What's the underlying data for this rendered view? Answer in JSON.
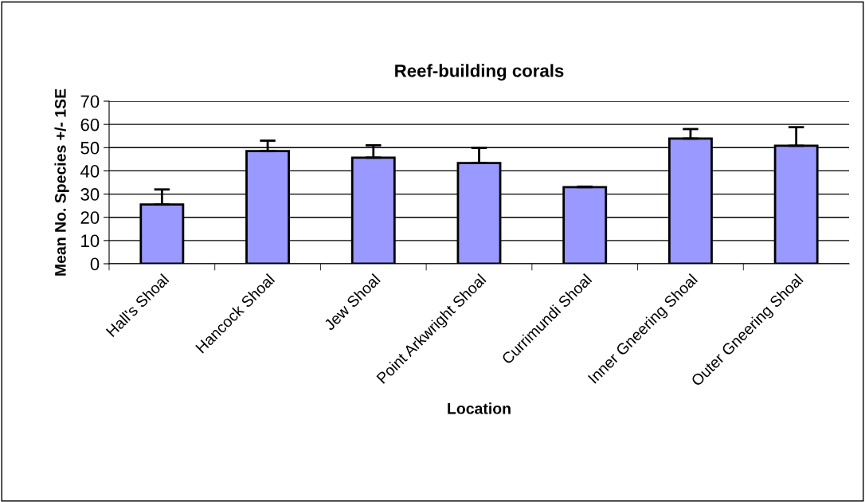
{
  "chart_data": {
    "type": "bar",
    "title": "Reef-building corals",
    "xlabel": "Location",
    "ylabel": "Mean No. Species +/- 1SE",
    "categories": [
      "Hall's Shoal",
      "Hancock Shoal",
      "Jew Shoal",
      "Point Arkwright Shoal",
      "Currimundi Shoal",
      "Inner Gneering Shoal",
      "Outer Gneering Shoal"
    ],
    "values": [
      25.5,
      48.5,
      45.7,
      43.4,
      33.0,
      53.9,
      50.8
    ],
    "errors": [
      [
        25.5,
        32
      ],
      [
        48.5,
        53
      ],
      [
        45.7,
        51
      ],
      [
        43.4,
        49.9
      ],
      [
        33.0,
        33.2
      ],
      [
        53.9,
        58
      ],
      [
        50.8,
        58.8
      ]
    ],
    "color": "#9999ff",
    "ylim": [
      0,
      70
    ],
    "yticks": [
      0,
      10,
      20,
      30,
      40,
      50,
      60,
      70
    ],
    "grid": "y",
    "legend": false
  }
}
